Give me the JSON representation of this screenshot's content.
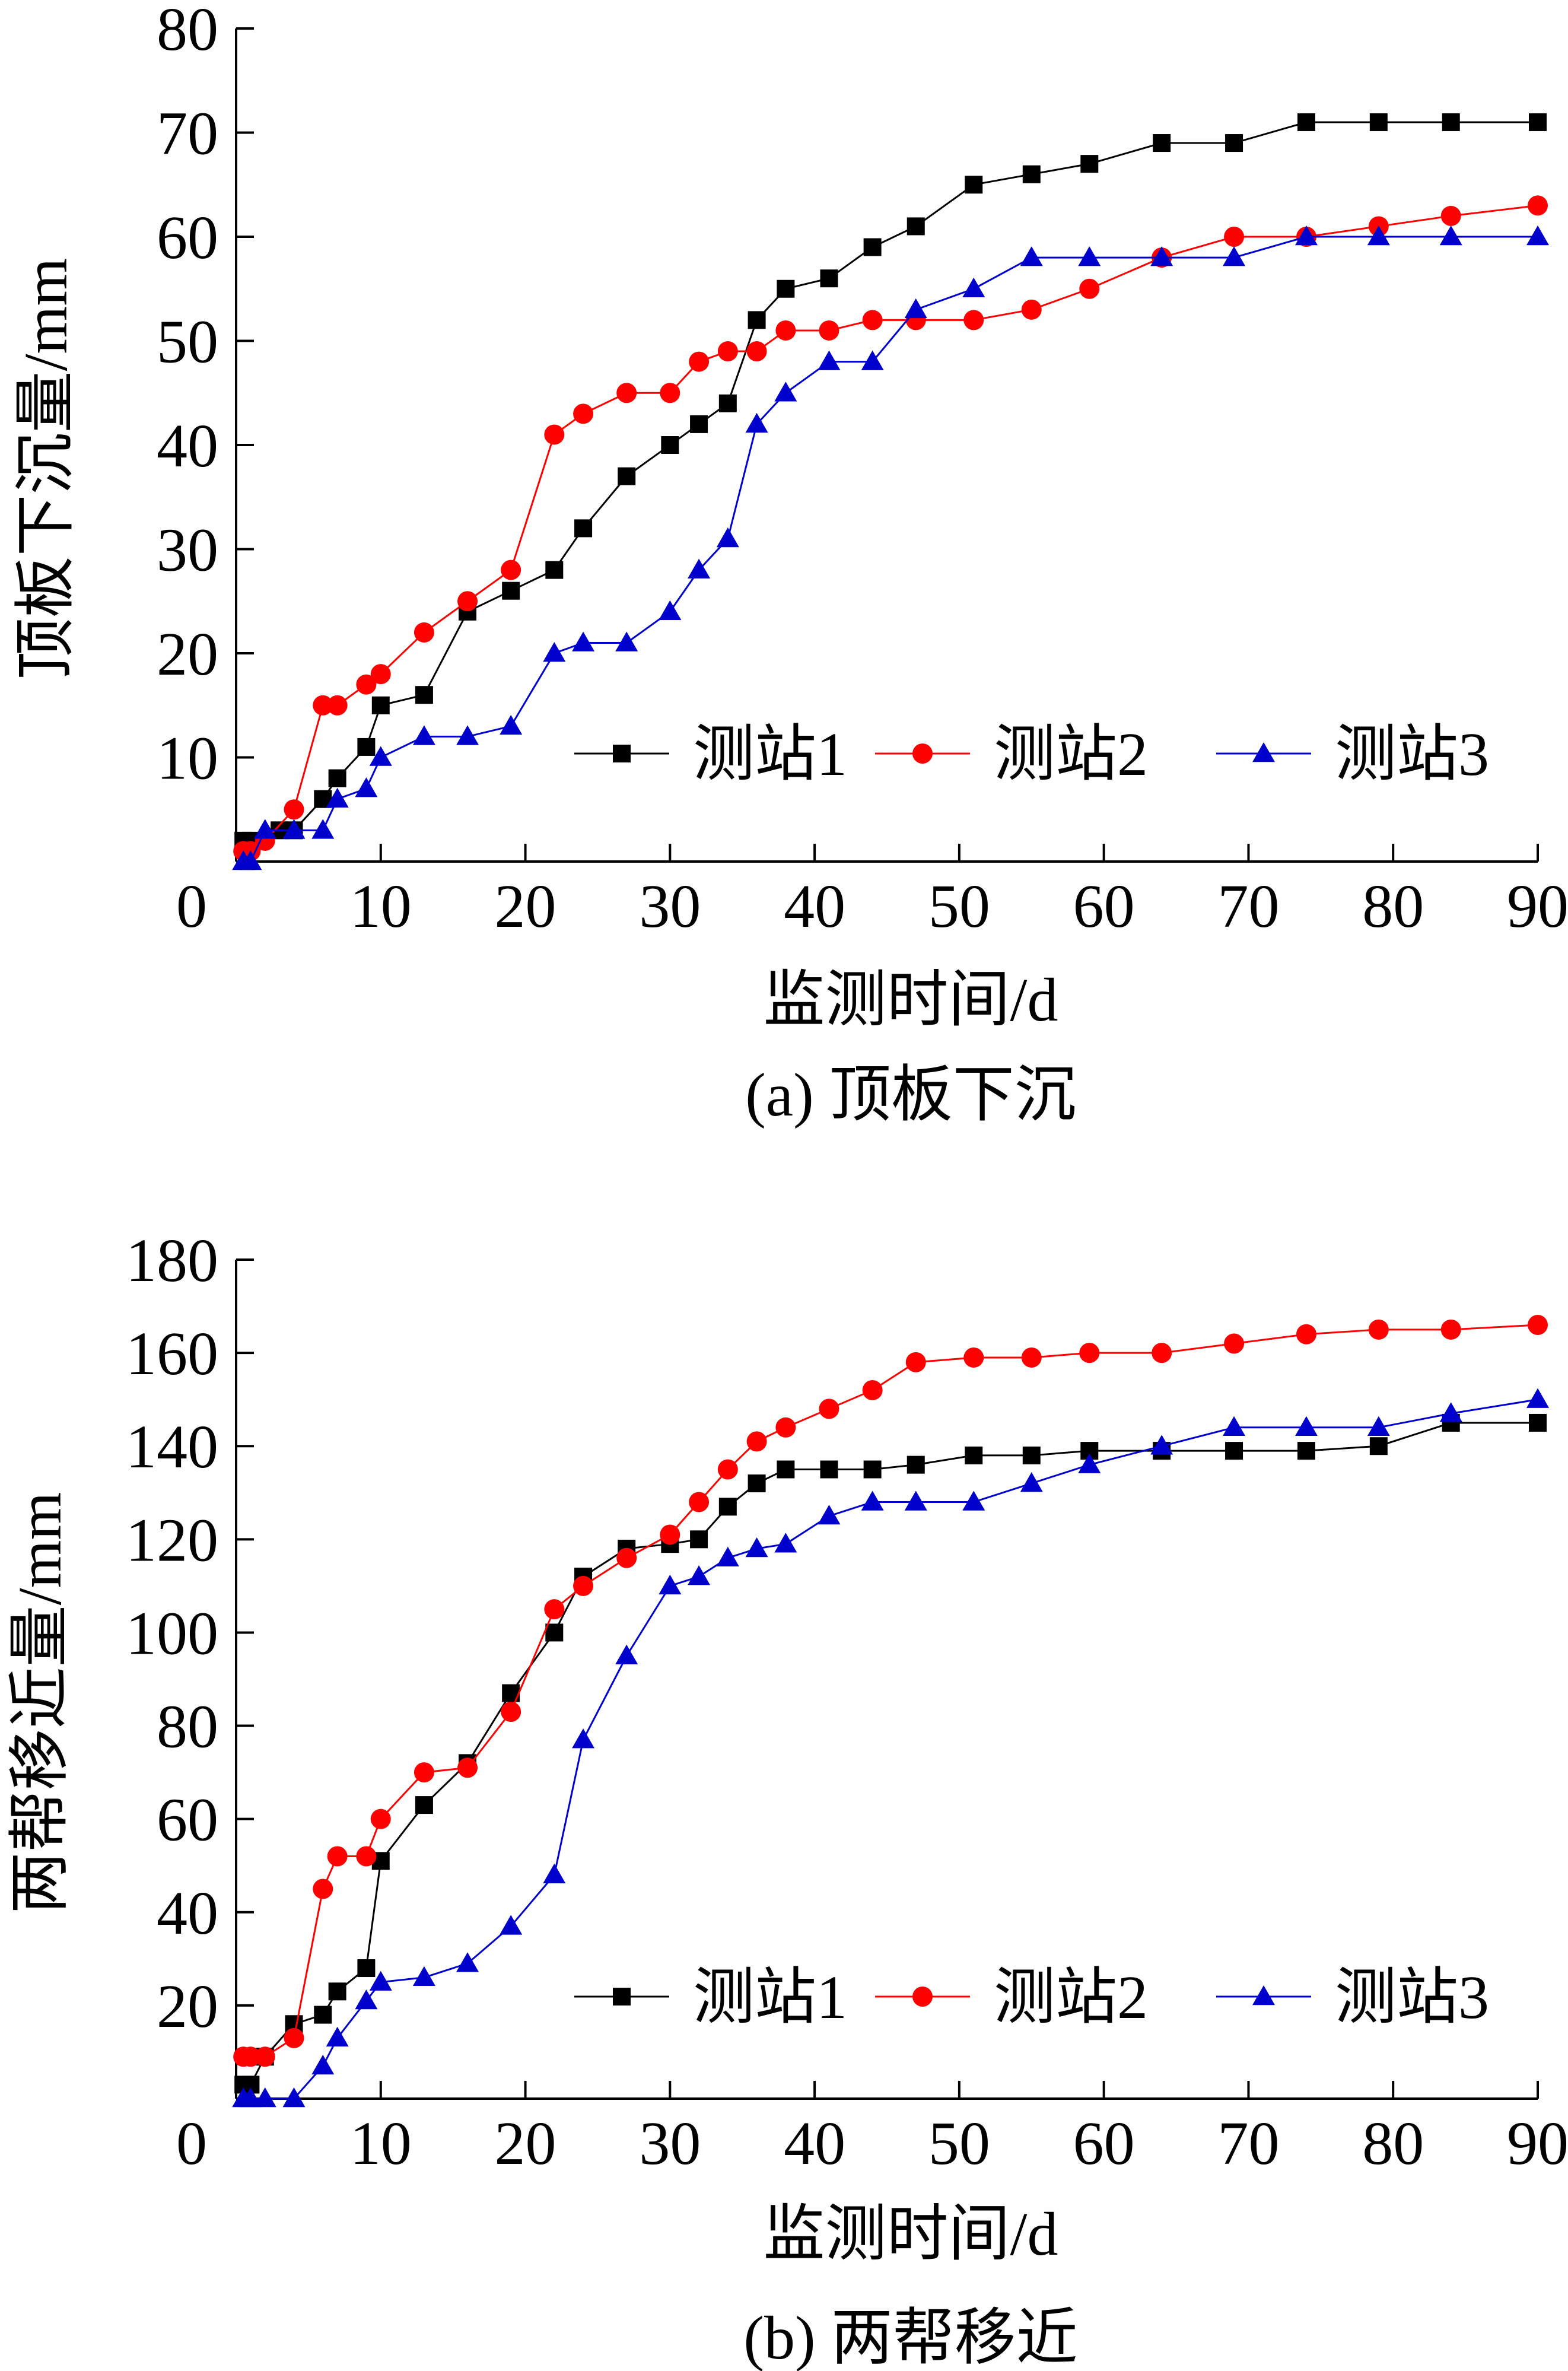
{
  "chart_data": [
    {
      "type": "line",
      "ylabel": "顶板下沉量/mm",
      "xlabel": "监测时间/d",
      "caption": "(a) 顶板下沉",
      "xlim": [
        0,
        90
      ],
      "ylim": [
        0,
        80
      ],
      "xticks": [
        0,
        10,
        20,
        30,
        40,
        50,
        60,
        70,
        80,
        90
      ],
      "yticks": [
        10,
        20,
        30,
        40,
        50,
        60,
        70,
        80
      ],
      "x_origin_label": "0",
      "legend_position": "lower-right",
      "series": [
        {
          "name": "测站1",
          "color": "#000000",
          "marker": "square",
          "x": [
            0.5,
            1,
            3,
            4,
            6,
            7,
            9,
            10,
            13,
            16,
            19,
            22,
            24,
            27,
            30,
            32,
            34,
            36,
            38,
            41,
            44,
            47,
            51,
            55,
            59,
            64,
            69,
            74,
            79,
            84,
            90
          ],
          "y": [
            2,
            2,
            3,
            3,
            6,
            8,
            11,
            15,
            16,
            24,
            26,
            28,
            32,
            37,
            40,
            42,
            44,
            52,
            55,
            56,
            59,
            61,
            65,
            66,
            67,
            69,
            69,
            71,
            71,
            71,
            71
          ]
        },
        {
          "name": "测站2",
          "color": "#ff0000",
          "marker": "circle",
          "x": [
            0.5,
            1,
            2,
            4,
            6,
            7,
            9,
            10,
            13,
            16,
            19,
            22,
            24,
            27,
            30,
            32,
            34,
            36,
            38,
            41,
            44,
            47,
            51,
            55,
            59,
            64,
            69,
            74,
            79,
            84,
            90
          ],
          "y": [
            1,
            1,
            2,
            5,
            15,
            15,
            17,
            18,
            22,
            25,
            28,
            41,
            43,
            45,
            45,
            48,
            49,
            49,
            51,
            51,
            52,
            52,
            52,
            53,
            55,
            58,
            60,
            60,
            61,
            62,
            63
          ]
        },
        {
          "name": "测站3",
          "color": "#0000cc",
          "marker": "triangle",
          "x": [
            0.5,
            1,
            2,
            4,
            6,
            7,
            9,
            10,
            13,
            16,
            19,
            22,
            24,
            27,
            30,
            32,
            34,
            36,
            38,
            41,
            44,
            47,
            51,
            55,
            59,
            64,
            69,
            74,
            79,
            84,
            90
          ],
          "y": [
            0,
            0,
            3,
            3,
            3,
            6,
            7,
            10,
            12,
            12,
            13,
            20,
            21,
            21,
            24,
            28,
            31,
            42,
            45,
            48,
            48,
            53,
            55,
            58,
            58,
            58,
            58,
            60,
            60,
            60,
            60
          ]
        }
      ]
    },
    {
      "type": "line",
      "ylabel": "两帮移近量/mm",
      "xlabel": "监测时间/d",
      "caption": "(b) 两帮移近",
      "xlim": [
        0,
        90
      ],
      "ylim": [
        0,
        180
      ],
      "xticks": [
        0,
        10,
        20,
        30,
        40,
        50,
        60,
        70,
        80,
        90
      ],
      "yticks": [
        20,
        40,
        60,
        80,
        100,
        120,
        140,
        160,
        180
      ],
      "x_origin_label": "0",
      "legend_position": "lower-right",
      "series": [
        {
          "name": "测站1",
          "color": "#000000",
          "marker": "square",
          "x": [
            0.5,
            1,
            2,
            4,
            6,
            7,
            9,
            10,
            13,
            16,
            19,
            22,
            24,
            27,
            30,
            32,
            34,
            36,
            38,
            41,
            44,
            47,
            51,
            55,
            59,
            64,
            69,
            74,
            79,
            84,
            90
          ],
          "y": [
            3,
            3,
            9,
            16,
            18,
            23,
            28,
            51,
            63,
            72,
            87,
            100,
            112,
            118,
            119,
            120,
            127,
            132,
            135,
            135,
            135,
            136,
            138,
            138,
            139,
            139,
            139,
            139,
            140,
            145,
            145
          ]
        },
        {
          "name": "测站2",
          "color": "#ff0000",
          "marker": "circle",
          "x": [
            0.5,
            1,
            2,
            4,
            6,
            7,
            9,
            10,
            13,
            16,
            19,
            22,
            24,
            27,
            30,
            32,
            34,
            36,
            38,
            41,
            44,
            47,
            51,
            55,
            59,
            64,
            69,
            74,
            79,
            84,
            90
          ],
          "y": [
            9,
            9,
            9,
            13,
            45,
            52,
            52,
            60,
            70,
            71,
            83,
            105,
            110,
            116,
            121,
            128,
            135,
            141,
            144,
            148,
            152,
            158,
            159,
            159,
            160,
            160,
            162,
            164,
            165,
            165,
            166
          ]
        },
        {
          "name": "测站3",
          "color": "#0000cc",
          "marker": "triangle",
          "x": [
            0.5,
            1,
            2,
            4,
            6,
            7,
            9,
            10,
            13,
            16,
            19,
            22,
            24,
            27,
            30,
            32,
            34,
            36,
            38,
            41,
            44,
            47,
            51,
            55,
            59,
            64,
            69,
            74,
            79,
            84,
            90
          ],
          "y": [
            0,
            0,
            0,
            0,
            7,
            13,
            21,
            25,
            26,
            29,
            37,
            48,
            77,
            95,
            110,
            112,
            116,
            118,
            119,
            125,
            128,
            128,
            128,
            132,
            136,
            140,
            144,
            144,
            144,
            147,
            150
          ]
        }
      ]
    }
  ]
}
